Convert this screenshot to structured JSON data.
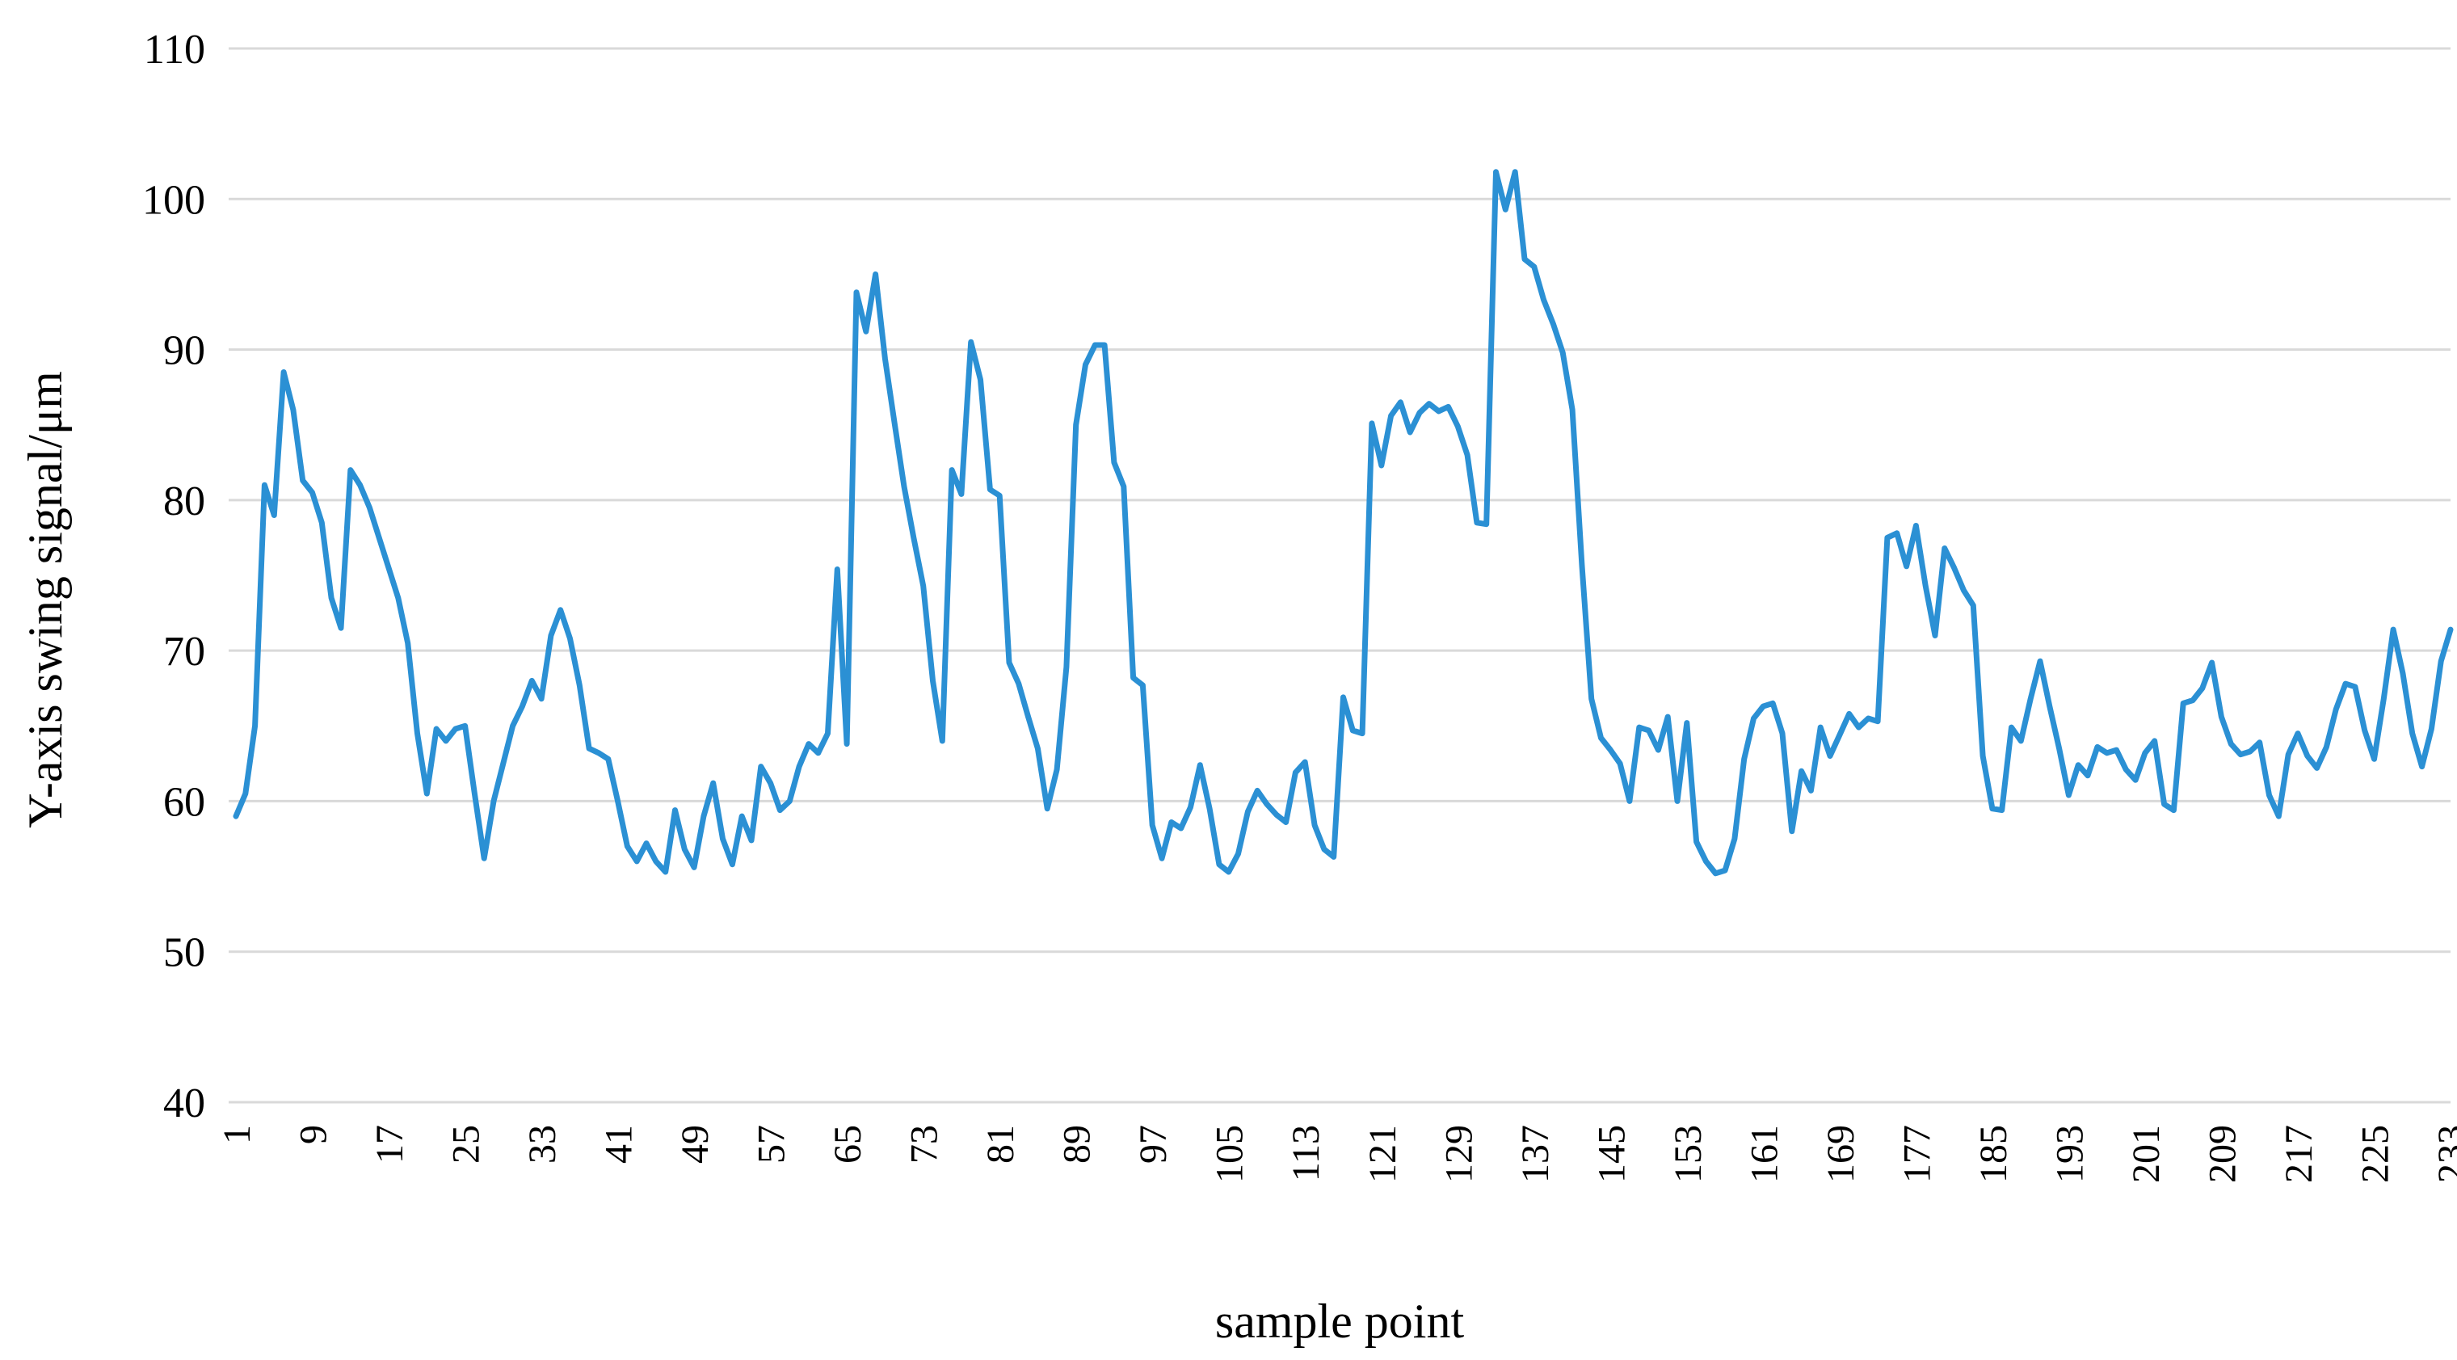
{
  "chart_data": {
    "type": "line",
    "title": "",
    "xlabel": "sample point",
    "ylabel": "Y-axis swing signal/μm",
    "x_start": 1,
    "x_step": 1,
    "x_count": 233,
    "x_tick_labels": [
      1,
      9,
      17,
      25,
      33,
      41,
      49,
      57,
      65,
      73,
      81,
      89,
      97,
      105,
      113,
      121,
      129,
      137,
      145,
      153,
      161,
      169,
      177,
      185,
      193,
      201,
      209,
      217,
      225,
      233
    ],
    "yticks": [
      40,
      50,
      60,
      70,
      80,
      90,
      100,
      110
    ],
    "ylim": [
      40,
      110
    ],
    "grid": "horizontal",
    "legend": "none",
    "series": [
      {
        "name": "Y-axis swing signal",
        "values": [
          59,
          60.5,
          65,
          81,
          79,
          88.5,
          86,
          81.3,
          80.5,
          78.5,
          73.5,
          71.5,
          82,
          81,
          79.5,
          77.5,
          75.5,
          73.5,
          70.5,
          64.5,
          60.5,
          64.8,
          64,
          64.8,
          65,
          60.5,
          56.2,
          60,
          62.5,
          65,
          66.3,
          68,
          66.8,
          71,
          72.7,
          70.8,
          67.7,
          63.5,
          63.2,
          62.8,
          60,
          57,
          56,
          57.2,
          56,
          55.3,
          59.4,
          56.8,
          55.6,
          59,
          61.2,
          57.5,
          55.8,
          59,
          57.4,
          62.3,
          61.2,
          59.4,
          60,
          62.3,
          63.8,
          63.2,
          64.5,
          75.4,
          63.8,
          93.8,
          91.2,
          95,
          89.4,
          85.1,
          80.9,
          77.5,
          74.3,
          68,
          64,
          82,
          80.4,
          90.5,
          88,
          80.7,
          80.3,
          69.2,
          67.8,
          65.6,
          63.5,
          59.5,
          62.1,
          68.9,
          85,
          89,
          90.3,
          90.3,
          82.5,
          80.9,
          68.2,
          67.7,
          58.4,
          56.2,
          58.6,
          58.2,
          59.6,
          62.4,
          59.5,
          55.8,
          55.3,
          56.5,
          59.3,
          60.7,
          59.8,
          59.1,
          58.6,
          61.9,
          62.6,
          58.4,
          56.8,
          56.3,
          66.9,
          64.7,
          64.5,
          85.1,
          82.3,
          85.6,
          86.5,
          84.5,
          85.8,
          86.4,
          85.9,
          86.2,
          84.9,
          83,
          78.5,
          78.4,
          101.8,
          99.3,
          101.8,
          96,
          95.5,
          93.3,
          91.7,
          89.8,
          86,
          75.7,
          66.8,
          64.2,
          63.4,
          62.5,
          60,
          64.9,
          64.7,
          63.4,
          65.6,
          60,
          65.2,
          57.3,
          56,
          55.2,
          55.4,
          57.5,
          62.8,
          65.5,
          66.3,
          66.5,
          64.5,
          58,
          62,
          60.7,
          64.9,
          63,
          64.4,
          65.8,
          64.9,
          65.5,
          65.3,
          77.5,
          77.8,
          75.6,
          78.3,
          74.3,
          71,
          76.8,
          75.5,
          74,
          73,
          63,
          59.5,
          59.4,
          64.9,
          64,
          66.8,
          69.3,
          66.3,
          63.5,
          60.4,
          62.4,
          61.7,
          63.6,
          63.2,
          63.4,
          62.1,
          61.4,
          63.2,
          64,
          59.8,
          59.4,
          66.5,
          66.7,
          67.5,
          69.2,
          65.6,
          63.8,
          63.1,
          63.3,
          63.9,
          60.4,
          59,
          63.1,
          64.5,
          63,
          62.2,
          63.6,
          66.1,
          67.8,
          67.6,
          64.7,
          62.8,
          66.8,
          71.4,
          68.5,
          64.5,
          62.3,
          64.8,
          69.3,
          71.4
        ]
      }
    ],
    "colors": {
      "line": "#2B90D4",
      "grid": "#D9D9D9",
      "text": "#000000",
      "background": "#FFFFFF"
    }
  }
}
